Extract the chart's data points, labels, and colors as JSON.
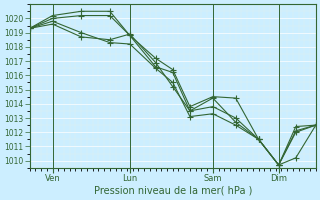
{
  "title": "",
  "xlabel": "Pression niveau de la mer( hPa )",
  "ylabel": "",
  "bg_color": "#cceeff",
  "grid_color": "#ffffff",
  "line_color": "#336633",
  "ylim": [
    1009.5,
    1021.0
  ],
  "yticks": [
    1010,
    1011,
    1012,
    1013,
    1014,
    1015,
    1016,
    1017,
    1018,
    1019,
    1020
  ],
  "day_labels": [
    "Ven",
    "Lun",
    "Sam",
    "Dim"
  ],
  "day_positions": [
    0.08,
    0.35,
    0.64,
    0.87
  ],
  "lines": [
    {
      "x": [
        0.0,
        0.08,
        0.18,
        0.28,
        0.35,
        0.44,
        0.5,
        0.56,
        0.64,
        0.72,
        0.8,
        0.87,
        0.93,
        1.0
      ],
      "y": [
        1019.3,
        1019.8,
        1019.0,
        1018.3,
        1018.2,
        1016.5,
        1015.5,
        1013.1,
        1013.3,
        1012.5,
        1011.5,
        1009.7,
        1010.2,
        1012.5
      ]
    },
    {
      "x": [
        0.0,
        0.08,
        0.18,
        0.28,
        0.35,
        0.44,
        0.5,
        0.56,
        0.64,
        0.72,
        0.8,
        0.87,
        0.93,
        1.0
      ],
      "y": [
        1019.3,
        1020.2,
        1020.5,
        1020.5,
        1018.8,
        1017.2,
        1016.4,
        1013.8,
        1014.5,
        1014.4,
        1011.5,
        1009.7,
        1012.1,
        1012.5
      ]
    },
    {
      "x": [
        0.0,
        0.08,
        0.18,
        0.28,
        0.35,
        0.44,
        0.5,
        0.56,
        0.64,
        0.72,
        0.8,
        0.87,
        0.93,
        1.0
      ],
      "y": [
        1019.3,
        1020.0,
        1020.2,
        1020.2,
        1018.8,
        1016.6,
        1016.2,
        1013.5,
        1013.8,
        1013.0,
        1011.5,
        1009.7,
        1012.4,
        1012.5
      ]
    },
    {
      "x": [
        0.0,
        0.08,
        0.18,
        0.28,
        0.35,
        0.44,
        0.5,
        0.56,
        0.64,
        0.72,
        0.8,
        0.87,
        0.93,
        1.0
      ],
      "y": [
        1019.3,
        1019.6,
        1018.7,
        1018.5,
        1018.9,
        1016.9,
        1015.2,
        1013.5,
        1014.4,
        1012.7,
        1011.5,
        1009.7,
        1012.0,
        1012.5
      ]
    }
  ]
}
